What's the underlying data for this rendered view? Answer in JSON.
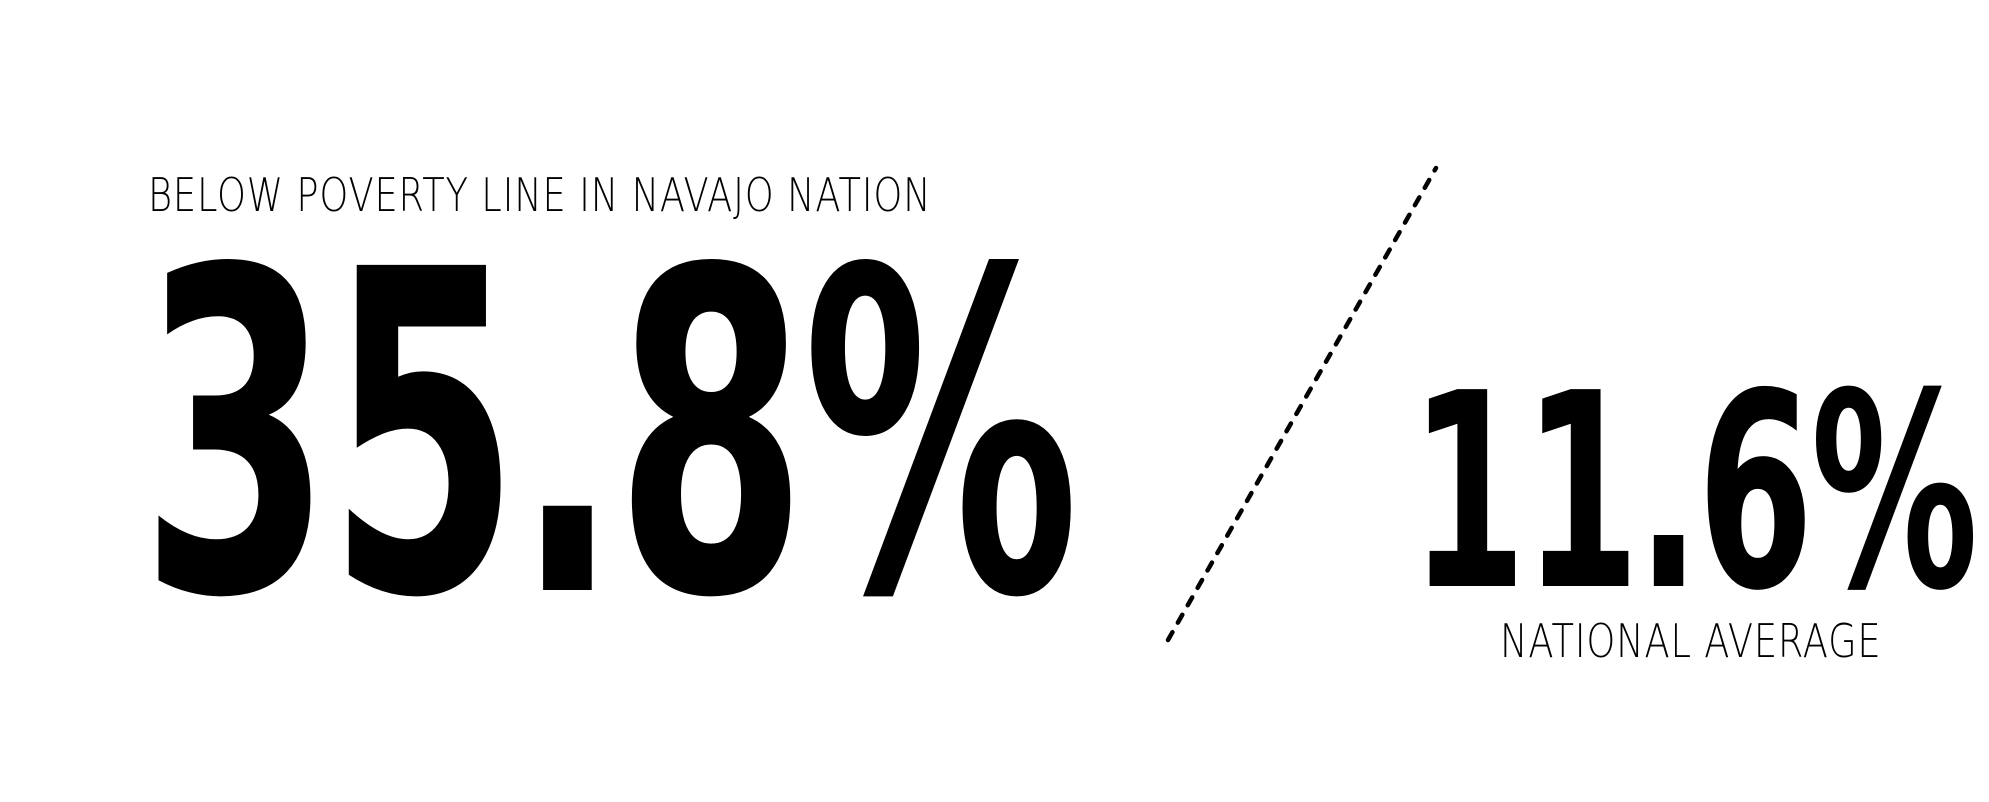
{
  "primary": {
    "label": "BELOW POVERTY LINE IN NAVAJO NATION",
    "value": "35.8%"
  },
  "secondary": {
    "value": "11.6%",
    "label": "NATIONAL AVERAGE"
  },
  "divider": {
    "style": "dotted-slash",
    "color": "#000000"
  }
}
